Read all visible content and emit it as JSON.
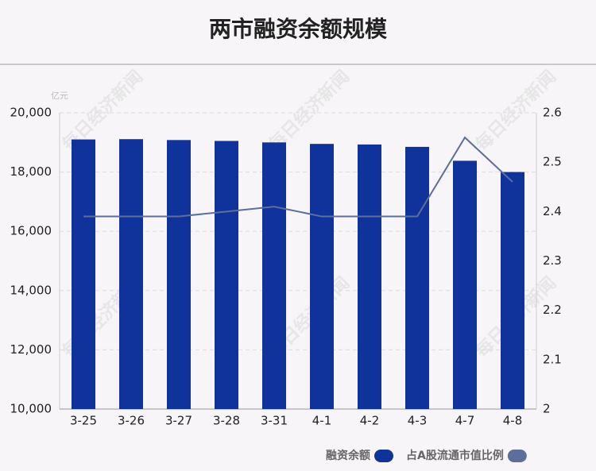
{
  "chart_data": {
    "type": "bar",
    "title": "两市融资余额规模",
    "unit": "亿元",
    "watermark": "每日经济新闻",
    "categories": [
      "3-25",
      "3-26",
      "3-27",
      "3-28",
      "3-31",
      "4-1",
      "4-2",
      "4-3",
      "4-7",
      "4-8"
    ],
    "series": [
      {
        "name": "融资余额",
        "type": "bar",
        "color": "#10339b",
        "values": [
          19100,
          19110,
          19080,
          19050,
          19000,
          18950,
          18930,
          18850,
          18380,
          18000
        ]
      },
      {
        "name": "占A股流通市值比例",
        "type": "line",
        "axis": "y2",
        "color": "#5b6f9a",
        "values": [
          2.39,
          2.39,
          2.39,
          2.4,
          2.41,
          2.39,
          2.39,
          2.39,
          2.55,
          2.46
        ]
      }
    ],
    "ylim": [
      10000,
      20000
    ],
    "yticks": [
      {
        "value": 10000,
        "label": "10,000"
      },
      {
        "value": 12000,
        "label": "12,000"
      },
      {
        "value": 14000,
        "label": "14,000"
      },
      {
        "value": 16000,
        "label": "16,000"
      },
      {
        "value": 18000,
        "label": "18,000"
      },
      {
        "value": 20000,
        "label": "20,000"
      }
    ],
    "y2lim": [
      2,
      2.6
    ],
    "y2ticks": [
      2,
      2.1,
      2.2,
      2.3,
      2.4,
      2.5,
      2.6
    ],
    "grid": true
  }
}
